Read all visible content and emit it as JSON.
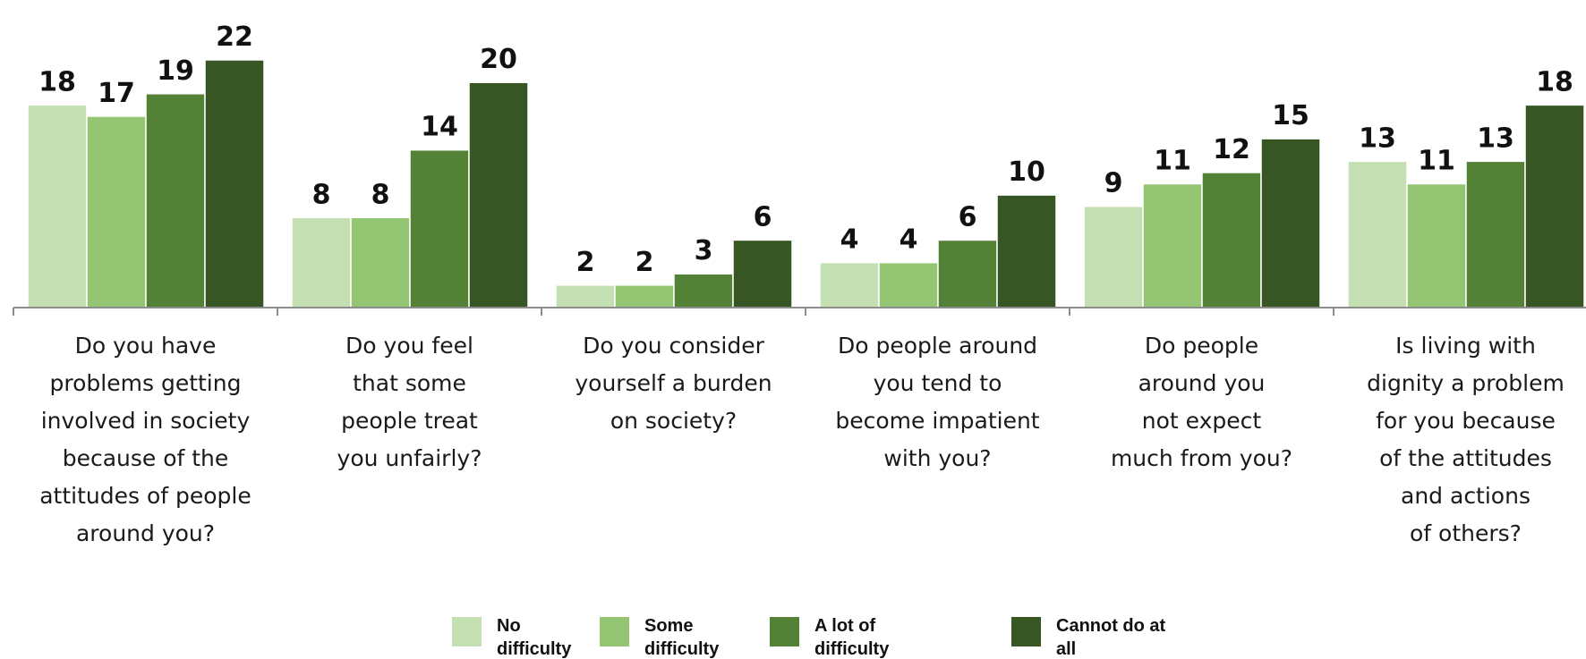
{
  "chart_data": {
    "type": "bar",
    "categories": [
      [
        "Do you have",
        "problems getting",
        "involved in society",
        "because of the",
        "attitudes of people",
        "around you?"
      ],
      [
        "Do you feel",
        "that some",
        "people treat",
        "you unfairly?"
      ],
      [
        "Do you consider",
        "yourself a burden",
        "on society?"
      ],
      [
        "Do people around",
        "you tend to",
        "become impatient",
        "with you?"
      ],
      [
        "Do people",
        "around you",
        "not expect",
        "much from you?"
      ],
      [
        "Is living with",
        "dignity a problem",
        "for you because",
        "of the attitudes",
        "and actions",
        "of others?"
      ]
    ],
    "series": [
      {
        "name": "No difficulty",
        "legend_lines": [
          "No",
          "difficulty"
        ],
        "color": "#c4e0b2",
        "values": [
          18,
          8,
          2,
          4,
          9,
          13
        ]
      },
      {
        "name": "Some difficulty",
        "legend_lines": [
          "Some",
          "difficulty"
        ],
        "color": "#93c572",
        "values": [
          17,
          8,
          2,
          4,
          11,
          11
        ]
      },
      {
        "name": "A lot of difficulty",
        "legend_lines": [
          "A lot of",
          "difficulty"
        ],
        "color": "#538135",
        "values": [
          19,
          14,
          3,
          6,
          12,
          13
        ]
      },
      {
        "name": "Cannot do at all",
        "legend_lines": [
          "Cannot do at",
          "all"
        ],
        "color": "#375623",
        "values": [
          22,
          20,
          6,
          10,
          15,
          18
        ]
      }
    ],
    "ylim": [
      0,
      22
    ],
    "grid": false,
    "legend_position": "bottom",
    "data_labels": true
  }
}
